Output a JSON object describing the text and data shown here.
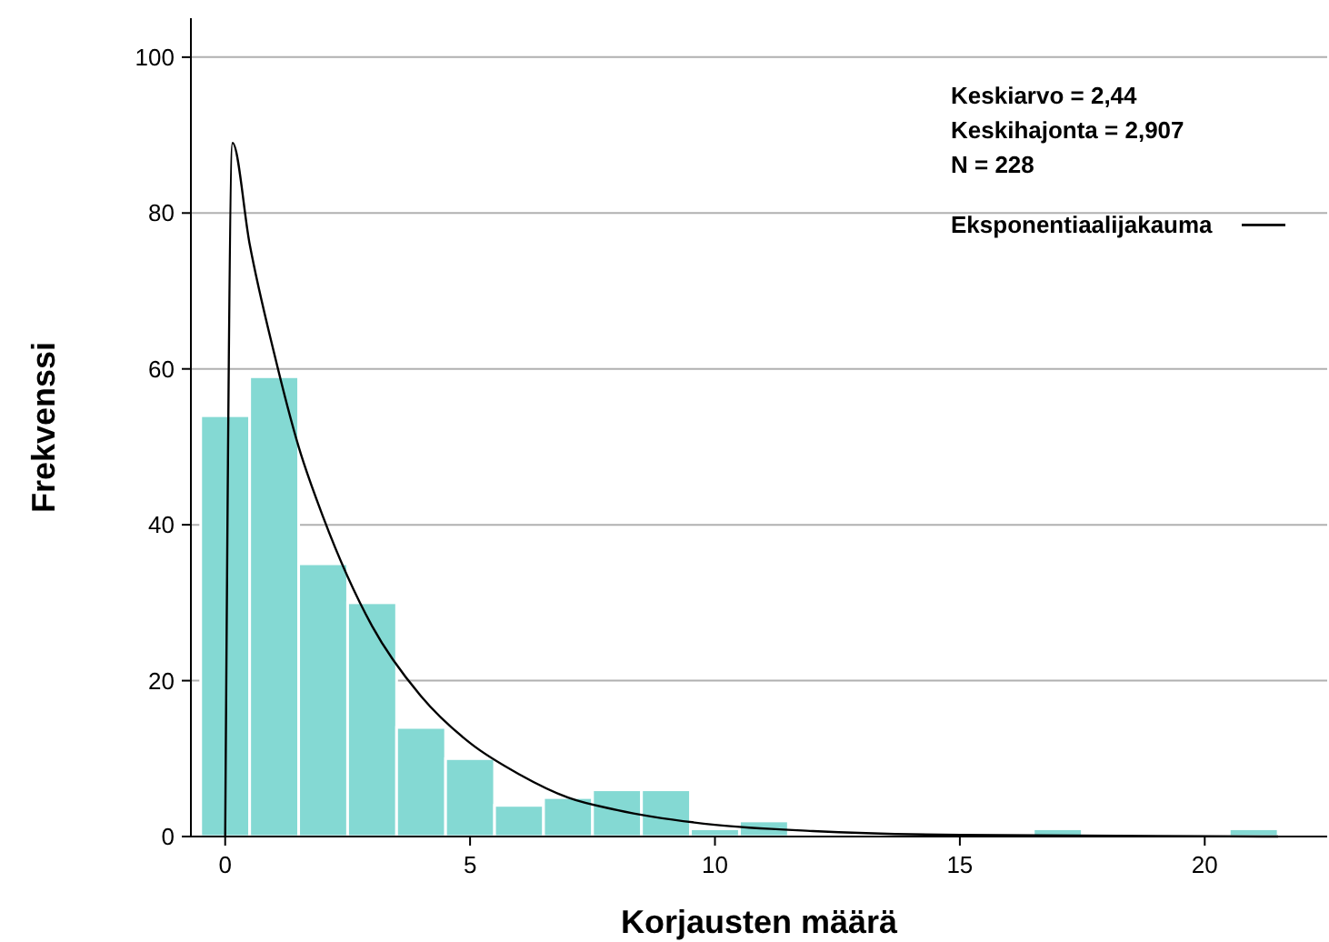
{
  "chart_data": {
    "type": "histogram",
    "xlabel": "Korjausten määrä",
    "ylabel": "Frekvenssi",
    "bins": [
      -0.5,
      0.5,
      1.5,
      2.5,
      3.5,
      4.5,
      5.5,
      6.5,
      7.5,
      8.5,
      9.5,
      10.5,
      11.5,
      12.5,
      13.5,
      14.5,
      15.5,
      16.5,
      17.5,
      18.5,
      19.5,
      20.5,
      21.5
    ],
    "values": [
      54,
      59,
      35,
      30,
      14,
      10,
      4,
      5,
      6,
      6,
      1,
      2,
      0,
      0,
      0,
      0,
      0,
      1,
      0,
      0,
      0,
      1
    ],
    "color": "#84d9d3",
    "series": [
      {
        "type": "line",
        "name": "Eksponentiaalijakauma",
        "color": "#000000",
        "x": [
          0,
          0.15,
          0.5,
          1,
          1.5,
          2,
          3,
          4,
          5,
          6,
          7,
          8,
          10,
          12,
          15,
          21.5
        ],
        "values": [
          0,
          89,
          76,
          62,
          50,
          41,
          27,
          18,
          12,
          8,
          5,
          3.4,
          1.5,
          0.7,
          0.2,
          0
        ]
      }
    ],
    "xlim": [
      -0.7,
      22.5
    ],
    "ylim": [
      0,
      105
    ],
    "xticks": [
      0,
      5,
      10,
      15,
      20
    ],
    "yticks": [
      0,
      20,
      40,
      60,
      80,
      100
    ],
    "grid": "y",
    "legend": "top right",
    "annotations": [
      "Keskiarvo = 2,44",
      "Keskihajonta = 2,907",
      "N = 228"
    ]
  }
}
